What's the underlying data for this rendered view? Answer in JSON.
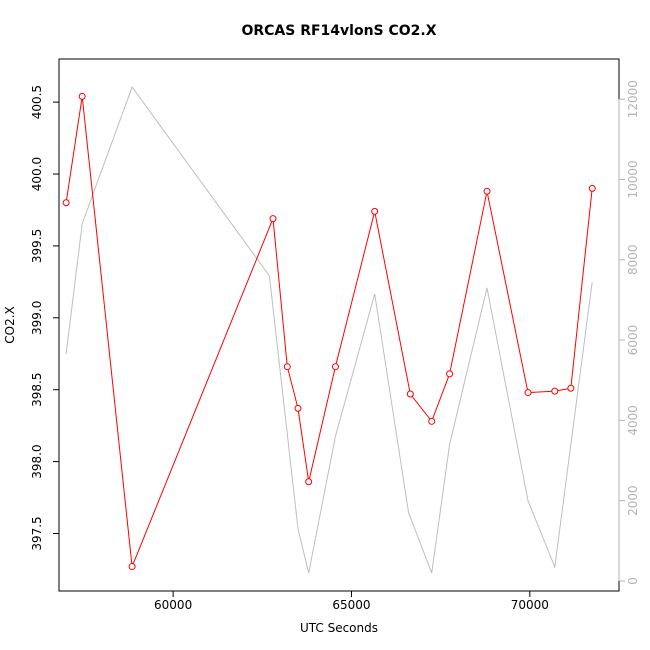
{
  "chart_data": {
    "type": "line",
    "title": "ORCAS RF14vlonS CO2.X",
    "xlabel": "UTC Seconds",
    "ylabel": "CO2.X",
    "xlim": [
      56800,
      72500
    ],
    "ylim": [
      397.1,
      400.8
    ],
    "y2lim": [
      -250,
      13000
    ],
    "x_ticks": [
      60000,
      65000,
      70000
    ],
    "y_ticks": [
      397.5,
      398.0,
      398.5,
      399.0,
      399.5,
      400.0,
      400.5
    ],
    "y_tick_labels": [
      "397.5",
      "398.0",
      "398.5",
      "399.0",
      "399.5",
      "400.0",
      "400.5"
    ],
    "y2_ticks": [
      0,
      2000,
      4000,
      6000,
      8000,
      10000,
      12000
    ],
    "grid": false,
    "series": [
      {
        "color": "#ff0000",
        "axis": "left",
        "markers": true,
        "x": [
          57000,
          57450,
          58850,
          62800,
          63200,
          63500,
          63800,
          64550,
          65650,
          66650,
          67250,
          67750,
          68800,
          69950,
          70700,
          71150,
          71750
        ],
        "y": [
          399.8,
          400.54,
          397.27,
          399.69,
          398.66,
          398.37,
          397.86,
          398.66,
          399.74,
          398.47,
          398.28,
          398.61,
          399.88,
          398.48,
          398.49,
          398.51,
          399.9
        ]
      },
      {
        "color": "#bebebe",
        "axis": "right",
        "markers": false,
        "x": [
          57000,
          57450,
          58850,
          62700,
          63500,
          63800,
          64550,
          65650,
          66600,
          67250,
          67750,
          68800,
          69950,
          70700,
          71750
        ],
        "y": [
          5650,
          8900,
          12300,
          7600,
          1300,
          200,
          3600,
          7150,
          1700,
          200,
          3400,
          7300,
          2000,
          350,
          7450
        ]
      }
    ]
  }
}
